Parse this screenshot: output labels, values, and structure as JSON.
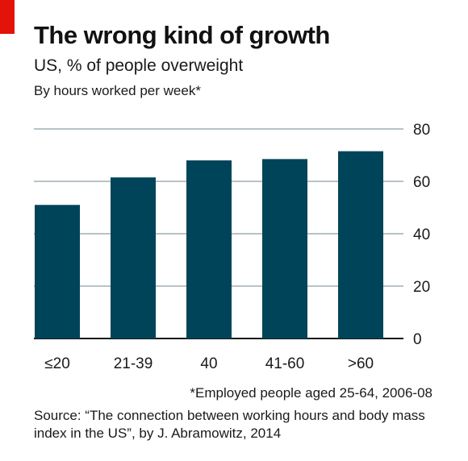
{
  "chart_data": {
    "type": "bar",
    "title": "The wrong kind of growth",
    "subtitle": "US, % of people overweight",
    "subsubtitle": "By hours worked per week*",
    "categories": [
      "≤20",
      "21-39",
      "40",
      "41-60",
      ">60"
    ],
    "values": [
      51,
      61.5,
      68,
      68.5,
      71.5
    ],
    "ylim": [
      0,
      80
    ],
    "yticks": [
      0,
      20,
      40,
      60,
      80
    ],
    "y_axis_side": "right",
    "grid": true,
    "bar_color": "#004459",
    "grid_color": "#b8c2c7",
    "accent": "#e3120b",
    "footnote": "*Employed people aged 25-64, 2006-08",
    "source": "Source: “The connection between working hours and body mass index in the US”, by J. Abramowitz, 2014"
  }
}
